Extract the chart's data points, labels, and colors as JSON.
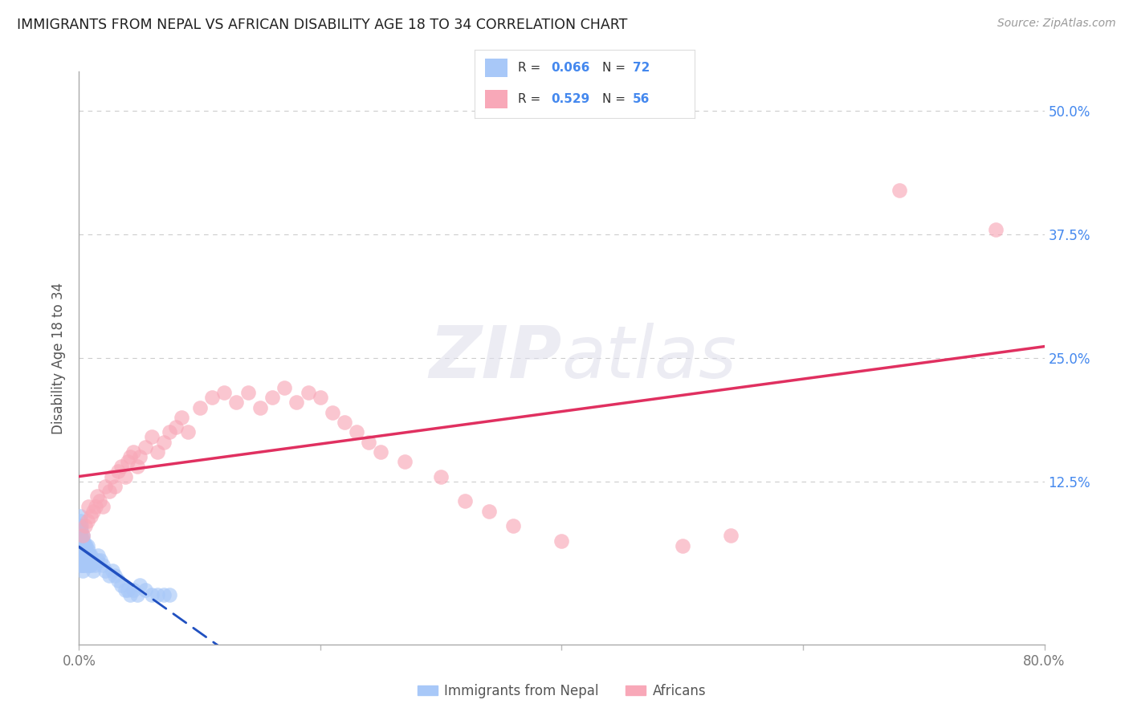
{
  "title": "IMMIGRANTS FROM NEPAL VS AFRICAN DISABILITY AGE 18 TO 34 CORRELATION CHART",
  "source": "Source: ZipAtlas.com",
  "ylabel": "Disability Age 18 to 34",
  "xmin": 0.0,
  "xmax": 0.8,
  "ymin": -0.04,
  "ymax": 0.54,
  "nepal_color": "#a8c8f8",
  "africa_color": "#f8a8b8",
  "nepal_line_color": "#2050c0",
  "africa_line_color": "#e03060",
  "legend_label1": "Immigrants from Nepal",
  "legend_label2": "Africans",
  "background_color": "#ffffff",
  "grid_color": "#cccccc",
  "title_color": "#202020",
  "source_color": "#999999",
  "label_color": "#4488ee",
  "nepal_x": [
    0.001,
    0.001,
    0.001,
    0.001,
    0.001,
    0.001,
    0.001,
    0.001,
    0.001,
    0.001,
    0.002,
    0.002,
    0.002,
    0.002,
    0.002,
    0.002,
    0.002,
    0.002,
    0.002,
    0.003,
    0.003,
    0.003,
    0.003,
    0.003,
    0.003,
    0.003,
    0.004,
    0.004,
    0.004,
    0.004,
    0.004,
    0.005,
    0.005,
    0.005,
    0.005,
    0.006,
    0.006,
    0.006,
    0.007,
    0.007,
    0.007,
    0.008,
    0.008,
    0.009,
    0.009,
    0.01,
    0.01,
    0.012,
    0.013,
    0.015,
    0.016,
    0.018,
    0.02,
    0.022,
    0.025,
    0.028,
    0.03,
    0.032,
    0.035,
    0.038,
    0.04,
    0.042,
    0.045,
    0.048,
    0.05,
    0.055,
    0.06,
    0.065,
    0.07,
    0.075
  ],
  "nepal_y": [
    0.04,
    0.05,
    0.055,
    0.06,
    0.065,
    0.07,
    0.075,
    0.08,
    0.085,
    0.09,
    0.04,
    0.045,
    0.05,
    0.055,
    0.06,
    0.065,
    0.07,
    0.075,
    0.08,
    0.035,
    0.04,
    0.05,
    0.055,
    0.06,
    0.065,
    0.07,
    0.04,
    0.045,
    0.055,
    0.06,
    0.065,
    0.04,
    0.05,
    0.055,
    0.06,
    0.045,
    0.055,
    0.06,
    0.04,
    0.05,
    0.06,
    0.045,
    0.055,
    0.04,
    0.05,
    0.04,
    0.05,
    0.035,
    0.04,
    0.045,
    0.05,
    0.045,
    0.04,
    0.035,
    0.03,
    0.035,
    0.03,
    0.025,
    0.02,
    0.015,
    0.015,
    0.01,
    0.015,
    0.01,
    0.02,
    0.015,
    0.01,
    0.01,
    0.01,
    0.01
  ],
  "africa_x": [
    0.003,
    0.005,
    0.007,
    0.008,
    0.01,
    0.012,
    0.014,
    0.015,
    0.017,
    0.02,
    0.022,
    0.025,
    0.027,
    0.03,
    0.032,
    0.035,
    0.038,
    0.04,
    0.042,
    0.045,
    0.048,
    0.05,
    0.055,
    0.06,
    0.065,
    0.07,
    0.075,
    0.08,
    0.085,
    0.09,
    0.1,
    0.11,
    0.12,
    0.13,
    0.14,
    0.15,
    0.16,
    0.17,
    0.18,
    0.19,
    0.2,
    0.21,
    0.22,
    0.23,
    0.24,
    0.25,
    0.27,
    0.3,
    0.32,
    0.34,
    0.36,
    0.4,
    0.5,
    0.54,
    0.68,
    0.76
  ],
  "africa_y": [
    0.07,
    0.08,
    0.085,
    0.1,
    0.09,
    0.095,
    0.1,
    0.11,
    0.105,
    0.1,
    0.12,
    0.115,
    0.13,
    0.12,
    0.135,
    0.14,
    0.13,
    0.145,
    0.15,
    0.155,
    0.14,
    0.15,
    0.16,
    0.17,
    0.155,
    0.165,
    0.175,
    0.18,
    0.19,
    0.175,
    0.2,
    0.21,
    0.215,
    0.205,
    0.215,
    0.2,
    0.21,
    0.22,
    0.205,
    0.215,
    0.21,
    0.195,
    0.185,
    0.175,
    0.165,
    0.155,
    0.145,
    0.13,
    0.105,
    0.095,
    0.08,
    0.065,
    0.06,
    0.07,
    0.42,
    0.38
  ]
}
